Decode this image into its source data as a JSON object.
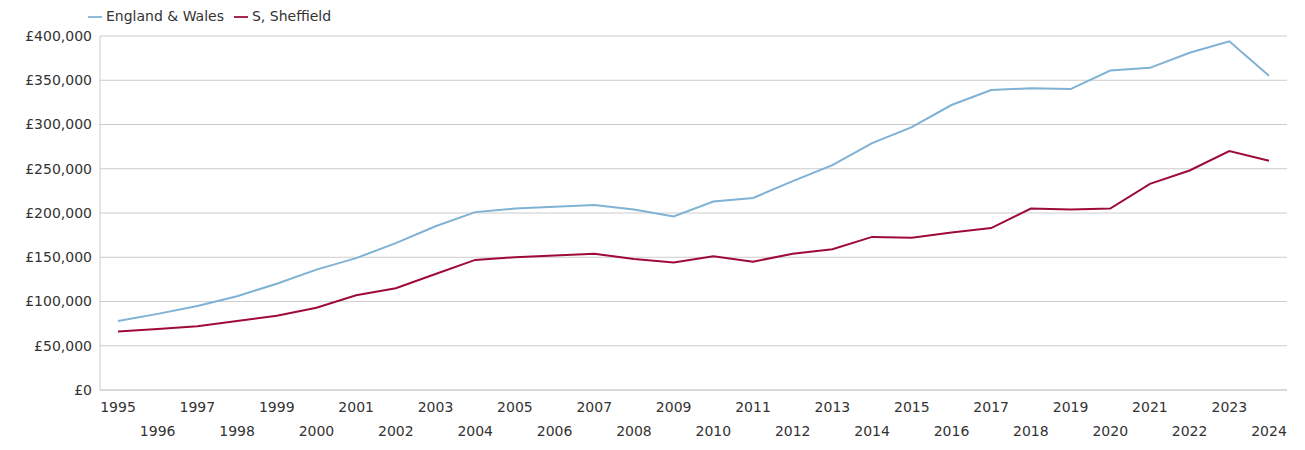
{
  "chart_data": {
    "type": "line",
    "categories": [
      "1995",
      "1996",
      "1997",
      "1998",
      "1999",
      "2000",
      "2001",
      "2002",
      "2003",
      "2004",
      "2005",
      "2006",
      "2007",
      "2008",
      "2009",
      "2010",
      "2011",
      "2012",
      "2013",
      "2014",
      "2015",
      "2016",
      "2017",
      "2018",
      "2019",
      "2020",
      "2021",
      "2022",
      "2023",
      "2024"
    ],
    "series": [
      {
        "name": "S, Sheffield",
        "color": "#9e0b37",
        "values": [
          66000,
          69000,
          72000,
          78000,
          84000,
          93000,
          107000,
          115000,
          131000,
          147000,
          150000,
          152000,
          154000,
          148000,
          144000,
          151000,
          145000,
          154000,
          159000,
          173000,
          172000,
          178000,
          183000,
          205000,
          204000,
          205000,
          233000,
          248000,
          270000,
          259000
        ]
      },
      {
        "name": "England & Wales",
        "color": "#7fb2d5",
        "values": [
          78000,
          86000,
          95000,
          106000,
          120000,
          136000,
          149000,
          166000,
          185000,
          201000,
          205000,
          207000,
          209000,
          204000,
          196000,
          213000,
          217000,
          236000,
          254000,
          279000,
          297000,
          322000,
          339000,
          341000,
          340000,
          361000,
          364000,
          381000,
          394000,
          355000
        ]
      }
    ],
    "ylim": [
      0,
      400000
    ],
    "yticks": [
      {
        "value": 0,
        "label": "£0"
      },
      {
        "value": 50000,
        "label": "£50,000"
      },
      {
        "value": 100000,
        "label": "£100,000"
      },
      {
        "value": 150000,
        "label": "£150,000"
      },
      {
        "value": 200000,
        "label": "£200,000"
      },
      {
        "value": 250000,
        "label": "£250,000"
      },
      {
        "value": 300000,
        "label": "£300,000"
      },
      {
        "value": 350000,
        "label": "£350,000"
      },
      {
        "value": 400000,
        "label": "£400,000"
      }
    ],
    "grid": true,
    "legend": "top-left"
  }
}
